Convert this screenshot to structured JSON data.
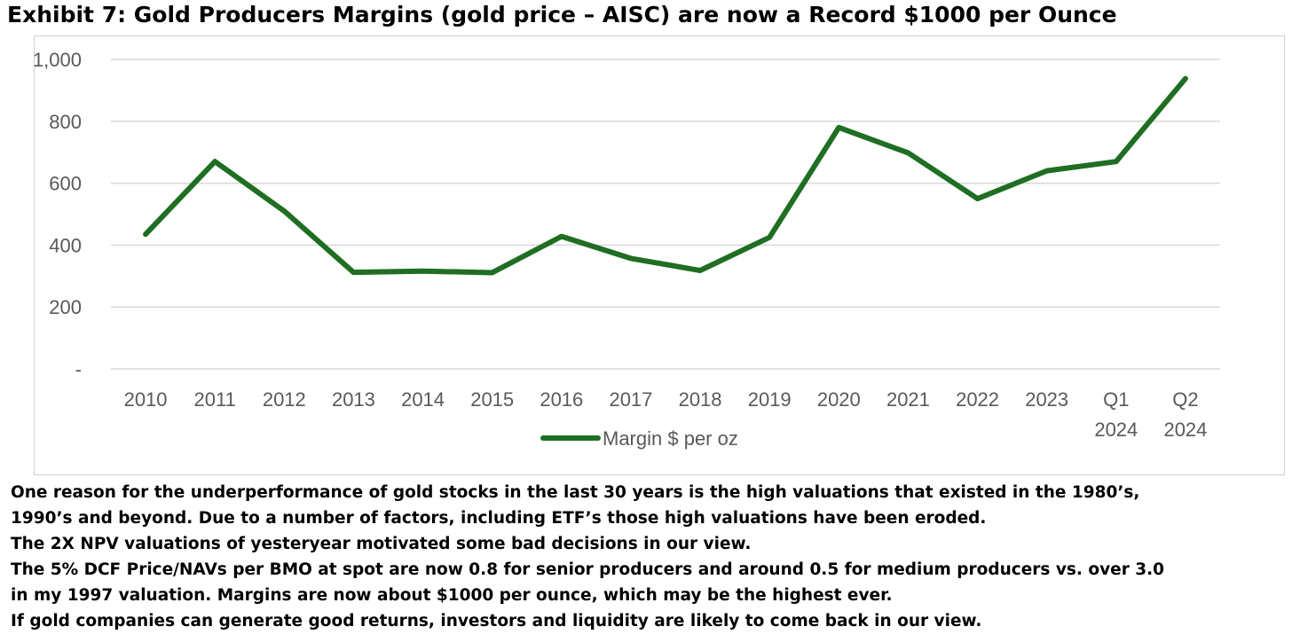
{
  "title": "Exhibit 7:  Gold Producers Margins (gold price – AISC) are now a Record $1000 per Ounce",
  "chart_data": {
    "type": "line",
    "categories": [
      "2010",
      "2011",
      "2012",
      "2013",
      "2014",
      "2015",
      "2016",
      "2017",
      "2018",
      "2019",
      "2020",
      "2021",
      "2022",
      "2023",
      "Q1 2024",
      "Q2 2024"
    ],
    "category_labels": [
      [
        "2010"
      ],
      [
        "2011"
      ],
      [
        "2012"
      ],
      [
        "2013"
      ],
      [
        "2014"
      ],
      [
        "2015"
      ],
      [
        "2016"
      ],
      [
        "2017"
      ],
      [
        "2018"
      ],
      [
        "2019"
      ],
      [
        "2020"
      ],
      [
        "2021"
      ],
      [
        "2022"
      ],
      [
        "2023"
      ],
      [
        "Q1",
        "2024"
      ],
      [
        "Q2",
        "2024"
      ]
    ],
    "series": [
      {
        "name": "Margin $ per oz",
        "values": [
          435,
          670,
          510,
          312,
          316,
          311,
          428,
          357,
          318,
          425,
          780,
          698,
          550,
          640,
          670,
          938
        ],
        "color": "#1f6e23"
      }
    ],
    "ylim": [
      0,
      1000
    ],
    "y_ticks": [
      0,
      200,
      400,
      600,
      800,
      1000
    ],
    "y_tick_labels": [
      "-",
      "200",
      "400",
      "600",
      "800",
      "1,000"
    ],
    "xlabel": "",
    "ylabel": "",
    "grid": true,
    "legend_position": "bottom"
  },
  "notes": [
    "One reason for the underperformance of gold stocks in the last 30 years is the high valuations that existed in the 1980’s,",
    "1990’s and beyond.  Due to a number of factors, including ETF’s those high valuations have been eroded.",
    "The 2X NPV valuations of yesteryear motivated some bad decisions in our view.",
    "The 5% DCF Price/NAVs per BMO at spot are now 0.8 for senior producers and around 0.5 for medium producers vs. over 3.0",
    "in my 1997 valuation.  Margins are now about $1000 per ounce, which may be the highest ever.",
    "If gold companies can generate good returns, investors and liquidity are likely to come back in our view."
  ]
}
